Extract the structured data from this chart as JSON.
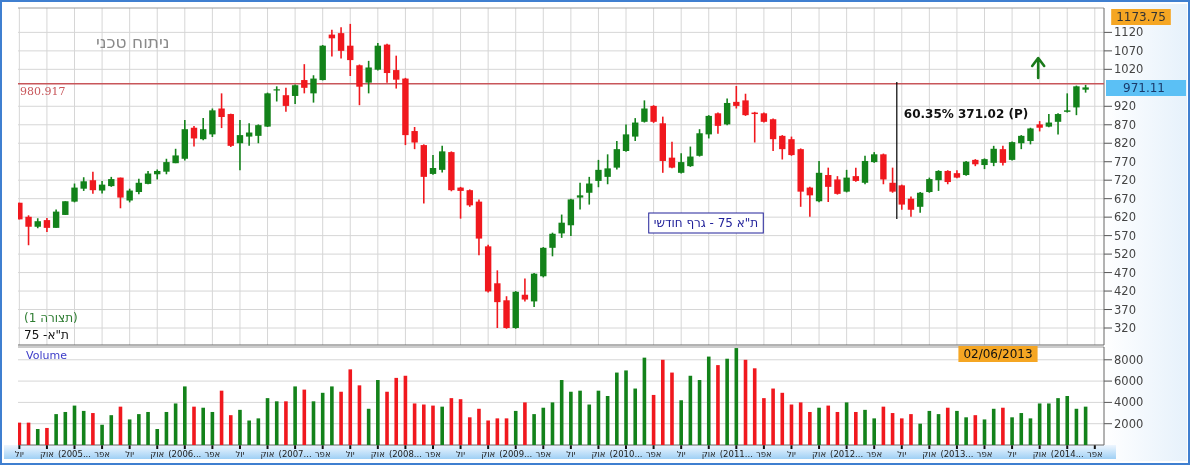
{
  "chart_data": [
    {
      "type": "candlestick",
      "title": "ת\"א 75 - גרף חודשי",
      "subtitle": "ניתוח טכני",
      "x": [
        "2004-07",
        "2004-08",
        "2004-09",
        "2004-10",
        "2004-11",
        "2004-12",
        "2005-01",
        "2005-02",
        "2005-03",
        "2005-04",
        "2005-05",
        "2005-06",
        "2005-07",
        "2005-08",
        "2005-09",
        "2005-10",
        "2005-11",
        "2005-12",
        "2006-01",
        "2006-02",
        "2006-03",
        "2006-04",
        "2006-05",
        "2006-06",
        "2006-07",
        "2006-08",
        "2006-09",
        "2006-10",
        "2006-11",
        "2006-12",
        "2007-01",
        "2007-02",
        "2007-03",
        "2007-04",
        "2007-05",
        "2007-06",
        "2007-07",
        "2007-08",
        "2007-09",
        "2007-10",
        "2007-11",
        "2007-12",
        "2008-01",
        "2008-02",
        "2008-03",
        "2008-04",
        "2008-05",
        "2008-06",
        "2008-07",
        "2008-08",
        "2008-09",
        "2008-10",
        "2008-11",
        "2008-12",
        "2009-01",
        "2009-02",
        "2009-03",
        "2009-04",
        "2009-05",
        "2009-06",
        "2009-07",
        "2009-08",
        "2009-09",
        "2009-10",
        "2009-11",
        "2009-12",
        "2010-01",
        "2010-02",
        "2010-03",
        "2010-04",
        "2010-05",
        "2010-06",
        "2010-07",
        "2010-08",
        "2010-09",
        "2010-10",
        "2010-11",
        "2010-12",
        "2011-01",
        "2011-02",
        "2011-03",
        "2011-04",
        "2011-05",
        "2011-06",
        "2011-07",
        "2011-08",
        "2011-09",
        "2011-10",
        "2011-11",
        "2011-12",
        "2012-01",
        "2012-02",
        "2012-03",
        "2012-04",
        "2012-05",
        "2012-06",
        "2012-07",
        "2012-08",
        "2012-09",
        "2012-10",
        "2012-11",
        "2012-12",
        "2013-01",
        "2013-02",
        "2013-03",
        "2013-04",
        "2013-05",
        "2013-06",
        "2013-07",
        "2013-08",
        "2013-09",
        "2013-10",
        "2013-11",
        "2013-12",
        "2014-01",
        "2014-02",
        "2014-03"
      ],
      "ohlc": [
        [
          659,
          659,
          614,
          614
        ],
        [
          621,
          625,
          544,
          594
        ],
        [
          594,
          617,
          590,
          609
        ],
        [
          612,
          618,
          580,
          591
        ],
        [
          591,
          641,
          591,
          635
        ],
        [
          626,
          663,
          626,
          663
        ],
        [
          662,
          711,
          660,
          700
        ],
        [
          697,
          728,
          691,
          717
        ],
        [
          720,
          743,
          683,
          693
        ],
        [
          692,
          718,
          684,
          708
        ],
        [
          704,
          729,
          702,
          723
        ],
        [
          727,
          727,
          644,
          673
        ],
        [
          665,
          697,
          660,
          692
        ],
        [
          688,
          724,
          682,
          713
        ],
        [
          710,
          745,
          709,
          738
        ],
        [
          736,
          749,
          722,
          745
        ],
        [
          743,
          778,
          736,
          769
        ],
        [
          766,
          805,
          766,
          787
        ],
        [
          778,
          883,
          773,
          858
        ],
        [
          862,
          867,
          811,
          833
        ],
        [
          831,
          888,
          828,
          858
        ],
        [
          844,
          914,
          837,
          909
        ],
        [
          914,
          955,
          861,
          891
        ],
        [
          899,
          900,
          810,
          813
        ],
        [
          820,
          883,
          747,
          842
        ],
        [
          838,
          874,
          813,
          849
        ],
        [
          840,
          871,
          820,
          869
        ],
        [
          865,
          957,
          864,
          955
        ],
        [
          963,
          974,
          933,
          966
        ],
        [
          950,
          970,
          905,
          921
        ],
        [
          948,
          979,
          926,
          977
        ],
        [
          991,
          1034,
          955,
          970
        ],
        [
          955,
          1004,
          930,
          995
        ],
        [
          991,
          1086,
          990,
          1084
        ],
        [
          1114,
          1127,
          1055,
          1104
        ],
        [
          1118,
          1134,
          1049,
          1070
        ],
        [
          1084,
          1143,
          1002,
          1045
        ],
        [
          1031,
          1033,
          923,
          973
        ],
        [
          984,
          1043,
          955,
          1025
        ],
        [
          1019,
          1091,
          1017,
          1084
        ],
        [
          1087,
          1089,
          984,
          1010
        ],
        [
          1018,
          1057,
          968,
          992
        ],
        [
          995,
          997,
          815,
          842
        ],
        [
          853,
          864,
          804,
          822
        ],
        [
          815,
          817,
          657,
          729
        ],
        [
          737,
          788,
          735,
          753
        ],
        [
          748,
          813,
          741,
          798
        ],
        [
          796,
          798,
          690,
          693
        ],
        [
          700,
          702,
          616,
          691
        ],
        [
          693,
          695,
          648,
          652
        ],
        [
          662,
          668,
          517,
          562
        ],
        [
          541,
          545,
          416,
          419
        ],
        [
          441,
          476,
          320,
          390
        ],
        [
          395,
          406,
          318,
          320
        ],
        [
          320,
          420,
          318,
          418
        ],
        [
          410,
          454,
          392,
          397
        ],
        [
          392,
          469,
          377,
          467
        ],
        [
          460,
          539,
          457,
          537
        ],
        [
          537,
          578,
          514,
          575
        ],
        [
          576,
          627,
          564,
          605
        ],
        [
          598,
          670,
          569,
          668
        ],
        [
          673,
          713,
          641,
          679
        ],
        [
          686,
          729,
          654,
          711
        ],
        [
          718,
          775,
          701,
          748
        ],
        [
          729,
          790,
          709,
          752
        ],
        [
          754,
          826,
          749,
          804
        ],
        [
          799,
          871,
          797,
          844
        ],
        [
          838,
          888,
          826,
          876
        ],
        [
          878,
          936,
          876,
          914
        ],
        [
          921,
          923,
          875,
          878
        ],
        [
          874,
          892,
          740,
          772
        ],
        [
          781,
          824,
          752,
          754
        ],
        [
          740,
          793,
          738,
          769
        ],
        [
          758,
          811,
          756,
          784
        ],
        [
          786,
          858,
          784,
          847
        ],
        [
          844,
          896,
          833,
          894
        ],
        [
          901,
          903,
          846,
          867
        ],
        [
          871,
          941,
          869,
          929
        ],
        [
          932,
          975,
          914,
          921
        ],
        [
          936,
          954,
          894,
          896
        ],
        [
          903,
          905,
          822,
          899
        ],
        [
          901,
          903,
          876,
          878
        ],
        [
          885,
          887,
          799,
          831
        ],
        [
          840,
          842,
          776,
          804
        ],
        [
          831,
          838,
          786,
          788
        ],
        [
          804,
          806,
          648,
          689
        ],
        [
          700,
          702,
          621,
          679
        ],
        [
          663,
          772,
          660,
          740
        ],
        [
          734,
          754,
          661,
          702
        ],
        [
          722,
          731,
          681,
          683
        ],
        [
          689,
          748,
          687,
          727
        ],
        [
          731,
          754,
          716,
          718
        ],
        [
          713,
          786,
          709,
          772
        ],
        [
          769,
          796,
          767,
          790
        ],
        [
          790,
          792,
          709,
          722
        ],
        [
          713,
          754,
          686,
          689
        ],
        [
          706,
          708,
          640,
          654
        ],
        [
          670,
          676,
          621,
          640
        ],
        [
          648,
          688,
          632,
          686
        ],
        [
          688,
          727,
          686,
          723
        ],
        [
          720,
          747,
          691,
          745
        ],
        [
          745,
          747,
          709,
          715
        ],
        [
          739,
          747,
          725,
          727
        ],
        [
          734,
          772,
          732,
          770
        ],
        [
          775,
          777,
          758,
          763
        ],
        [
          761,
          779,
          750,
          777
        ],
        [
          767,
          813,
          758,
          805
        ],
        [
          804,
          813,
          760,
          767
        ],
        [
          775,
          825,
          773,
          823
        ],
        [
          820,
          842,
          804,
          840
        ],
        [
          826,
          862,
          817,
          860
        ],
        [
          871,
          880,
          852,
          862
        ],
        [
          865,
          899,
          863,
          876
        ],
        [
          878,
          901,
          844,
          899
        ],
        [
          905,
          955,
          903,
          909
        ],
        [
          917,
          976,
          896,
          974
        ],
        [
          965,
          978,
          957,
          971.11
        ]
      ],
      "colors": [
        "#f0181e",
        "#f0181e",
        "#13821a",
        "#f0181e",
        "#13821a",
        "#13821a",
        "#13821a",
        "#13821a",
        "#f0181e",
        "#13821a",
        "#13821a",
        "#f0181e",
        "#13821a",
        "#13821a",
        "#13821a",
        "#13821a",
        "#13821a",
        "#13821a",
        "#13821a",
        "#f0181e",
        "#13821a",
        "#13821a",
        "#f0181e",
        "#f0181e",
        "#13821a",
        "#13821a",
        "#13821a",
        "#13821a",
        "#13821a",
        "#f0181e",
        "#13821a",
        "#f0181e",
        "#13821a",
        "#13821a",
        "#f0181e",
        "#f0181e",
        "#f0181e",
        "#f0181e",
        "#13821a",
        "#13821a",
        "#f0181e",
        "#f0181e",
        "#f0181e",
        "#f0181e",
        "#f0181e",
        "#13821a",
        "#13821a",
        "#f0181e",
        "#f0181e",
        "#f0181e",
        "#f0181e",
        "#f0181e",
        "#f0181e",
        "#f0181e",
        "#13821a",
        "#f0181e",
        "#13821a",
        "#13821a",
        "#13821a",
        "#13821a",
        "#13821a",
        "#13821a",
        "#13821a",
        "#13821a",
        "#13821a",
        "#13821a",
        "#13821a",
        "#13821a",
        "#13821a",
        "#f0181e",
        "#f0181e",
        "#f0181e",
        "#13821a",
        "#13821a",
        "#13821a",
        "#13821a",
        "#f0181e",
        "#13821a",
        "#f0181e",
        "#f0181e",
        "#f0181e",
        "#f0181e",
        "#f0181e",
        "#f0181e",
        "#f0181e",
        "#f0181e",
        "#f0181e",
        "#13821a",
        "#f0181e",
        "#f0181e",
        "#13821a",
        "#f0181e",
        "#13821a",
        "#13821a",
        "#f0181e",
        "#f0181e",
        "#f0181e",
        "#f0181e",
        "#13821a",
        "#13821a",
        "#13821a",
        "#f0181e",
        "#f0181e",
        "#13821a",
        "#f0181e",
        "#13821a",
        "#13821a",
        "#f0181e",
        "#13821a",
        "#13821a",
        "#13821a",
        "#f0181e",
        "#13821a",
        "#13821a",
        "#13821a",
        "#13821a",
        "#13821a"
      ],
      "series": [
        {
          "type": "line",
          "x": [
            "2012-06-15",
            "2012-06-15"
          ],
          "values": [
            615,
            986
          ],
          "color": "#000000"
        }
      ],
      "ref_lines": [
        {
          "axis": "y",
          "value": 980.917,
          "label": "980.917",
          "color": "#c8565a"
        }
      ],
      "annotations": [
        "(תצורה 1)",
        "ת\"א- 75",
        "1173.75",
        {
          "text": "60.35% 371.02 (P)",
          "x": "2012-06-15",
          "y": 900
        },
        "971.11"
      ],
      "xlim": [
        "2004-06-27",
        "2014-05-01"
      ],
      "ylim": [
        274,
        1186
      ],
      "yticks": [
        320,
        370,
        420,
        470,
        520,
        570,
        620,
        670,
        720,
        770,
        820,
        870,
        920,
        1020,
        1070,
        1120
      ],
      "xticks": [
        {
          "value": "2004-07",
          "label": null
        },
        {
          "value": "2004-10",
          "label": null
        },
        {
          "value": "2005-01",
          "label": null
        },
        {
          "value": "2005-04",
          "label": null
        },
        {
          "value": "2005-07",
          "label": null
        },
        {
          "value": "2005-10",
          "label": null
        },
        {
          "value": "2006-01",
          "label": null
        },
        {
          "value": "2006-04",
          "label": null
        },
        {
          "value": "2006-07",
          "label": null
        },
        {
          "value": "2006-10",
          "label": null
        },
        {
          "value": "2007-01",
          "label": null
        },
        {
          "value": "2007-04",
          "label": null
        },
        {
          "value": "2007-07",
          "label": null
        },
        {
          "value": "2007-10",
          "label": null
        },
        {
          "value": "2008-01",
          "label": null
        },
        {
          "value": "2008-04",
          "label": null
        },
        {
          "value": "2008-07",
          "label": null
        },
        {
          "value": "2008-10",
          "label": null
        },
        {
          "value": "2009-01",
          "label": null
        },
        {
          "value": "2009-04",
          "label": null
        },
        {
          "value": "2009-07",
          "label": null
        },
        {
          "value": "2009-10",
          "label": null
        },
        {
          "value": "2010-01",
          "label": null
        },
        {
          "value": "2010-04",
          "label": null
        },
        {
          "value": "2010-07",
          "label": null
        },
        {
          "value": "2010-10",
          "label": null
        },
        {
          "value": "2011-01",
          "label": null
        },
        {
          "value": "2011-04",
          "label": null
        },
        {
          "value": "2011-07",
          "label": null
        },
        {
          "value": "2011-10",
          "label": null
        },
        {
          "value": "2012-01",
          "label": null
        },
        {
          "value": "2012-04",
          "label": null
        },
        {
          "value": "2012-07",
          "label": null
        },
        {
          "value": "2012-10",
          "label": null
        },
        {
          "value": "2013-01",
          "label": null
        },
        {
          "value": "2013-04",
          "label": null
        },
        {
          "value": "2013-07",
          "label": null
        },
        {
          "value": "2013-10",
          "label": null
        },
        {
          "value": "2014-01",
          "label": null
        },
        {
          "value": "2014-04",
          "label": null
        }
      ],
      "tick_labels": "y",
      "grid": true
    },
    {
      "type": "bar",
      "ylabel": "Volume",
      "x": [
        "2004-07",
        "2004-08",
        "2004-09",
        "2004-10",
        "2004-11",
        "2004-12",
        "2005-01",
        "2005-02",
        "2005-03",
        "2005-04",
        "2005-05",
        "2005-06",
        "2005-07",
        "2005-08",
        "2005-09",
        "2005-10",
        "2005-11",
        "2005-12",
        "2006-01",
        "2006-02",
        "2006-03",
        "2006-04",
        "2006-05",
        "2006-06",
        "2006-07",
        "2006-08",
        "2006-09",
        "2006-10",
        "2006-11",
        "2006-12",
        "2007-01",
        "2007-02",
        "2007-03",
        "2007-04",
        "2007-05",
        "2007-06",
        "2007-07",
        "2007-08",
        "2007-09",
        "2007-10",
        "2007-11",
        "2007-12",
        "2008-01",
        "2008-02",
        "2008-03",
        "2008-04",
        "2008-05",
        "2008-06",
        "2008-07",
        "2008-08",
        "2008-09",
        "2008-10",
        "2008-11",
        "2008-12",
        "2009-01",
        "2009-02",
        "2009-03",
        "2009-04",
        "2009-05",
        "2009-06",
        "2009-07",
        "2009-08",
        "2009-09",
        "2009-10",
        "2009-11",
        "2009-12",
        "2010-01",
        "2010-02",
        "2010-03",
        "2010-04",
        "2010-05",
        "2010-06",
        "2010-07",
        "2010-08",
        "2010-09",
        "2010-10",
        "2010-11",
        "2010-12",
        "2011-01",
        "2011-02",
        "2011-03",
        "2011-04",
        "2011-05",
        "2011-06",
        "2011-07",
        "2011-08",
        "2011-09",
        "2011-10",
        "2011-11",
        "2011-12",
        "2012-01",
        "2012-02",
        "2012-03",
        "2012-04",
        "2012-05",
        "2012-06",
        "2012-07",
        "2012-08",
        "2012-09",
        "2012-10",
        "2012-11",
        "2012-12",
        "2013-01",
        "2013-02",
        "2013-03",
        "2013-04",
        "2013-05",
        "2013-06",
        "2013-07",
        "2013-08",
        "2013-09",
        "2013-10",
        "2013-11",
        "2013-12",
        "2014-01",
        "2014-02",
        "2014-03"
      ],
      "values": [
        2100,
        2100,
        1500,
        1600,
        2900,
        3100,
        3700,
        3200,
        3000,
        1900,
        2800,
        3600,
        2400,
        2900,
        3100,
        1500,
        3100,
        3900,
        5500,
        3600,
        3500,
        3100,
        5100,
        2800,
        3300,
        2300,
        2500,
        4400,
        4100,
        4100,
        5500,
        5200,
        4100,
        4900,
        5500,
        5000,
        7100,
        5600,
        3400,
        6100,
        5000,
        6300,
        6500,
        3900,
        3800,
        3700,
        3600,
        4400,
        4300,
        2600,
        3400,
        2300,
        2500,
        2500,
        3200,
        4000,
        2900,
        3500,
        4000,
        6100,
        5000,
        5100,
        3800,
        5100,
        4600,
        6800,
        7000,
        5300,
        8200,
        4700,
        8000,
        6800,
        4200,
        6500,
        6100,
        8300,
        7500,
        8100,
        9100,
        8000,
        7200,
        4400,
        5300,
        4900,
        3800,
        4000,
        3100,
        3500,
        3700,
        3100,
        4000,
        3100,
        3300,
        2500,
        3600,
        3000,
        2500,
        2900,
        2000,
        3200,
        2900,
        3500,
        3200,
        2600,
        2800,
        2400,
        3400,
        3500,
        2600,
        3000,
        2500,
        3900,
        3900,
        4400,
        4600,
        3400,
        3600
      ],
      "colors": [
        "#f0181e",
        "#f0181e",
        "#13821a",
        "#f0181e",
        "#13821a",
        "#13821a",
        "#13821a",
        "#13821a",
        "#f0181e",
        "#13821a",
        "#13821a",
        "#f0181e",
        "#13821a",
        "#13821a",
        "#13821a",
        "#13821a",
        "#13821a",
        "#13821a",
        "#13821a",
        "#f0181e",
        "#13821a",
        "#13821a",
        "#f0181e",
        "#f0181e",
        "#13821a",
        "#13821a",
        "#13821a",
        "#13821a",
        "#13821a",
        "#f0181e",
        "#13821a",
        "#f0181e",
        "#13821a",
        "#13821a",
        "#13821a",
        "#f0181e",
        "#f0181e",
        "#f0181e",
        "#13821a",
        "#13821a",
        "#f0181e",
        "#f0181e",
        "#f0181e",
        "#f0181e",
        "#f0181e",
        "#f0181e",
        "#13821a",
        "#f0181e",
        "#f0181e",
        "#f0181e",
        "#f0181e",
        "#f0181e",
        "#f0181e",
        "#f0181e",
        "#13821a",
        "#f0181e",
        "#13821a",
        "#13821a",
        "#13821a",
        "#13821a",
        "#13821a",
        "#13821a",
        "#13821a",
        "#13821a",
        "#13821a",
        "#13821a",
        "#13821a",
        "#13821a",
        "#13821a",
        "#f0181e",
        "#f0181e",
        "#f0181e",
        "#13821a",
        "#13821a",
        "#13821a",
        "#13821a",
        "#f0181e",
        "#13821a",
        "#13821a",
        "#f0181e",
        "#f0181e",
        "#f0181e",
        "#f0181e",
        "#f0181e",
        "#f0181e",
        "#f0181e",
        "#f0181e",
        "#13821a",
        "#f0181e",
        "#f0181e",
        "#13821a",
        "#f0181e",
        "#13821a",
        "#13821a",
        "#f0181e",
        "#f0181e",
        "#f0181e",
        "#f0181e",
        "#13821a",
        "#13821a",
        "#13821a",
        "#f0181e",
        "#13821a",
        "#13821a",
        "#f0181e",
        "#13821a",
        "#13821a",
        "#f0181e",
        "#13821a",
        "#13821a",
        "#13821a",
        "#13821a",
        "#13821a",
        "#13821a",
        "#13821a",
        "#13821a",
        "#13821a"
      ],
      "annotations": [
        "02/06/2013"
      ],
      "xlim": [
        "2004-06-27",
        "2014-05-01"
      ],
      "ylim": [
        0,
        9200
      ],
      "yticks": [
        2000,
        4000,
        6000,
        8000
      ],
      "xticks": [
        {
          "value": "2004-07",
          "label": "יול"
        },
        {
          "value": "2004-10",
          "label": "אוק"
        },
        {
          "value": "2005-01",
          "label": "(2005..."
        },
        {
          "value": "2005-04",
          "label": "אפר"
        },
        {
          "value": "2005-07",
          "label": "יול"
        },
        {
          "value": "2005-10",
          "label": "אוק"
        },
        {
          "value": "2006-01",
          "label": "(2006..."
        },
        {
          "value": "2006-04",
          "label": "אפר"
        },
        {
          "value": "2006-07",
          "label": "יול"
        },
        {
          "value": "2006-10",
          "label": "אוק"
        },
        {
          "value": "2007-01",
          "label": "(2007..."
        },
        {
          "value": "2007-04",
          "label": "אפר"
        },
        {
          "value": "2007-07",
          "label": "יול"
        },
        {
          "value": "2007-10",
          "label": "אוק"
        },
        {
          "value": "2008-01",
          "label": "(2008..."
        },
        {
          "value": "2008-04",
          "label": "אפר"
        },
        {
          "value": "2008-07",
          "label": "יול"
        },
        {
          "value": "2008-10",
          "label": "אוק"
        },
        {
          "value": "2009-01",
          "label": "(2009..."
        },
        {
          "value": "2009-04",
          "label": "אפר"
        },
        {
          "value": "2009-07",
          "label": "יול"
        },
        {
          "value": "2009-10",
          "label": "אוק"
        },
        {
          "value": "2010-01",
          "label": "(2010..."
        },
        {
          "value": "2010-04",
          "label": "אפר"
        },
        {
          "value": "2010-07",
          "label": "יול"
        },
        {
          "value": "2010-10",
          "label": "אוק"
        },
        {
          "value": "2011-01",
          "label": "(2011..."
        },
        {
          "value": "2011-04",
          "label": "אפר"
        },
        {
          "value": "2011-07",
          "label": "יול"
        },
        {
          "value": "2011-10",
          "label": "אוק"
        },
        {
          "value": "2012-01",
          "label": "(2012..."
        },
        {
          "value": "2012-04",
          "label": "אפר"
        },
        {
          "value": "2012-07",
          "label": "יול"
        },
        {
          "value": "2012-10",
          "label": "אוק"
        },
        {
          "value": "2013-01",
          "label": "(2013..."
        },
        {
          "value": "2013-04",
          "label": "אפר"
        },
        {
          "value": "2013-07",
          "label": "יול"
        },
        {
          "value": "2013-10",
          "label": "אוק"
        },
        {
          "value": "2014-01",
          "label": "(2014..."
        },
        {
          "value": "2014-04",
          "label": "אפר"
        }
      ],
      "grid": "y"
    }
  ]
}
